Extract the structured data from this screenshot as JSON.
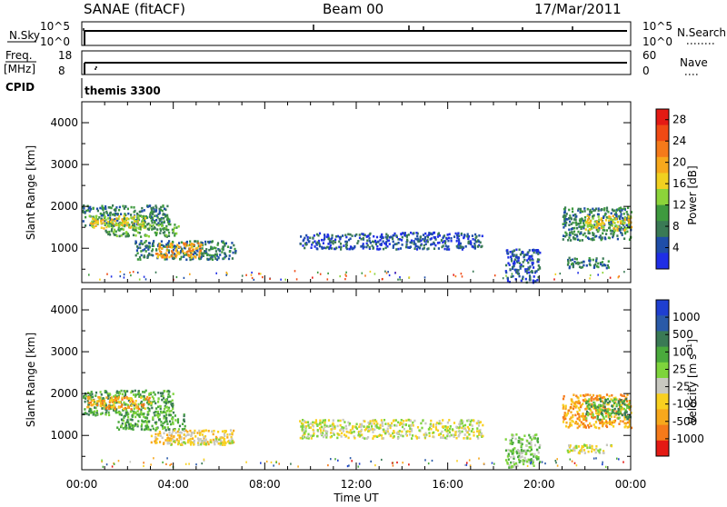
{
  "header": {
    "site": "SANAE (fitACF)",
    "beam": "Beam 00",
    "date": "17/Mar/2011"
  },
  "top_panels": {
    "nsky_label": "N.Sky",
    "nsky_ticks": [
      "10^5",
      "10^0"
    ],
    "nsearch_label": "N.Search",
    "nsearch_ticks": [
      "10^5",
      "10^0"
    ],
    "freq_label_1": "Freq.",
    "freq_label_2": "[MHz]",
    "freq_ticks": [
      "18",
      "8"
    ],
    "nave_label": "Nave",
    "nave_ticks": [
      "60",
      "0"
    ],
    "cpid_label": "CPID",
    "cpid_value": "themis 3300"
  },
  "chart_data": [
    {
      "type": "heatmap",
      "name": "power",
      "ylabel": "Slant Range [km]",
      "yticks": [
        "1000",
        "2000",
        "3000",
        "4000"
      ],
      "ylim": [
        180,
        4500
      ],
      "xlim": [
        0,
        24
      ],
      "xticks": [
        "00:00",
        "04:00",
        "08:00",
        "12:00",
        "16:00",
        "20:00",
        "00:00"
      ],
      "xlabel": "Time UT",
      "colorbar": {
        "label": "Power [dB]",
        "ticks": [
          "4",
          "8",
          "12",
          "16",
          "20",
          "24",
          "28"
        ],
        "range": [
          0,
          30
        ],
        "colors": [
          "#1f2ee6",
          "#1f4ea8",
          "#3a7a55",
          "#3e9a3e",
          "#8cd43a",
          "#f0d020",
          "#f7a81c",
          "#f57a1a",
          "#f04a14",
          "#e41a14"
        ]
      },
      "regions": [
        {
          "t0": 0.0,
          "t1": 3.8,
          "r0": 1550,
          "r1": 2050,
          "level": 2
        },
        {
          "t0": 0.3,
          "t1": 2.8,
          "r0": 1500,
          "r1": 1800,
          "level": 5
        },
        {
          "t0": 1.0,
          "t1": 4.2,
          "r0": 1300,
          "r1": 1600,
          "level": 3
        },
        {
          "t0": 2.3,
          "t1": 6.7,
          "r0": 750,
          "r1": 1200,
          "level": 2
        },
        {
          "t0": 3.2,
          "t1": 5.2,
          "r0": 800,
          "r1": 1150,
          "level": 6
        },
        {
          "t0": 9.5,
          "t1": 17.5,
          "r0": 1000,
          "r1": 1400,
          "level": 1
        },
        {
          "t0": 18.5,
          "t1": 20.0,
          "r0": 200,
          "r1": 1000,
          "level": 1
        },
        {
          "t0": 21.2,
          "t1": 23.0,
          "r0": 550,
          "r1": 800,
          "level": 2
        },
        {
          "t0": 21.0,
          "t1": 24.0,
          "r0": 1200,
          "r1": 2000,
          "level": 2
        },
        {
          "t0": 22.0,
          "t1": 24.0,
          "r0": 1450,
          "r1": 1800,
          "level": 5
        }
      ]
    },
    {
      "type": "heatmap",
      "name": "velocity",
      "ylabel": "Slant Range [km]",
      "yticks": [
        "1000",
        "2000",
        "3000",
        "4000"
      ],
      "ylim": [
        180,
        4500
      ],
      "xlim": [
        0,
        24
      ],
      "xticks": [
        "00:00",
        "04:00",
        "08:00",
        "12:00",
        "16:00",
        "20:00",
        "00:00"
      ],
      "xlabel": "Time UT",
      "colorbar": {
        "label": "Velocity [m s^-1]",
        "ticks": [
          "1000",
          "500",
          "100",
          "25",
          "-25",
          "-100",
          "-500",
          "-1000"
        ],
        "colors": [
          "#1f3fd0",
          "#2a5aa8",
          "#3a7a55",
          "#4aaa3c",
          "#7ed43c",
          "#c8c8c0",
          "#f8d020",
          "#f7a81c",
          "#f57a1a",
          "#e41a14"
        ]
      },
      "regions": [
        {
          "t0": 0.0,
          "t1": 4.0,
          "r0": 1500,
          "r1": 2100,
          "level": 3
        },
        {
          "t0": 0.2,
          "t1": 3.0,
          "r0": 1650,
          "r1": 1950,
          "level": 7
        },
        {
          "t0": 1.5,
          "t1": 4.5,
          "r0": 1150,
          "r1": 1600,
          "level": 3
        },
        {
          "t0": 3.0,
          "t1": 6.6,
          "r0": 800,
          "r1": 1150,
          "level": 6
        },
        {
          "t0": 3.8,
          "t1": 6.6,
          "r0": 800,
          "r1": 950,
          "level": 5
        },
        {
          "t0": 9.5,
          "t1": 17.5,
          "r0": 950,
          "r1": 1400,
          "level": 5
        },
        {
          "t0": 18.5,
          "t1": 20.0,
          "r0": 250,
          "r1": 1050,
          "level": 4
        },
        {
          "t0": 21.2,
          "t1": 23.3,
          "r0": 600,
          "r1": 800,
          "level": 5
        },
        {
          "t0": 21.0,
          "t1": 24.0,
          "r0": 1200,
          "r1": 2000,
          "level": 7
        },
        {
          "t0": 22.0,
          "t1": 24.0,
          "r0": 1400,
          "r1": 1900,
          "level": 3
        }
      ]
    }
  ]
}
